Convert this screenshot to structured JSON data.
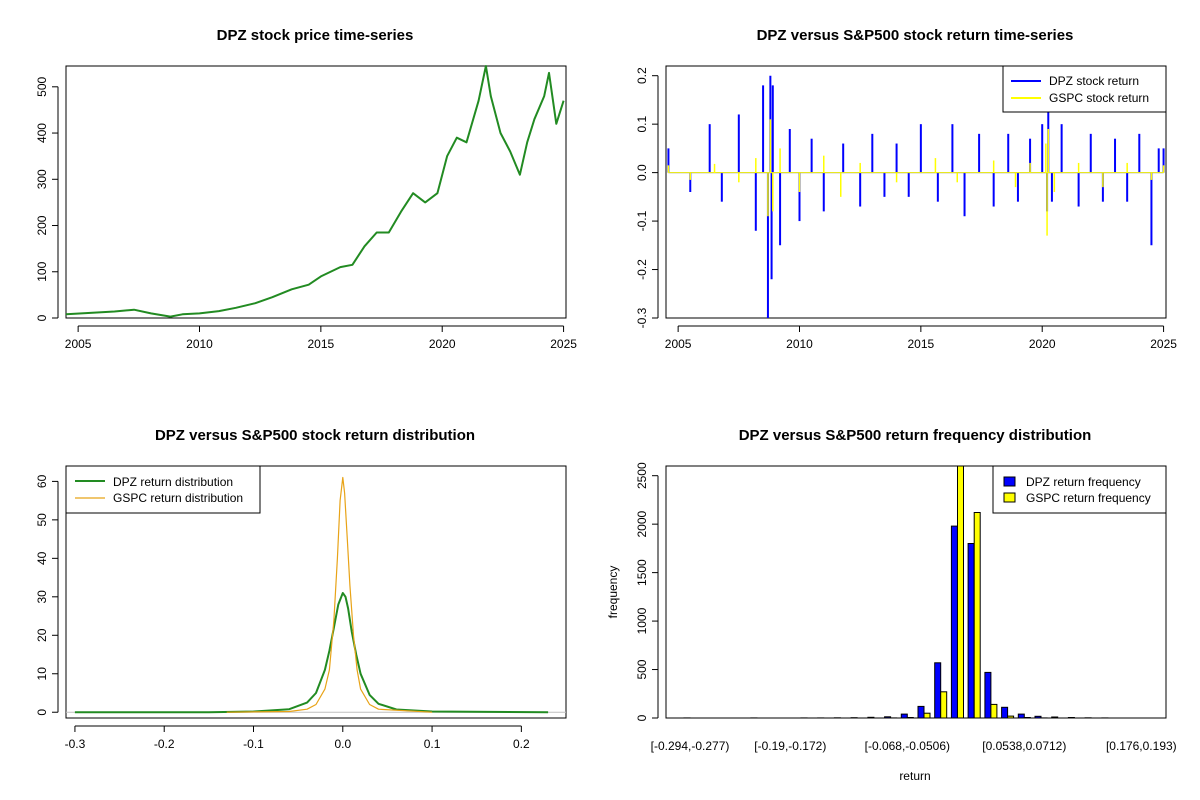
{
  "chart_data": [
    {
      "type": "line",
      "title": "DPZ stock price time-series",
      "xlabel": "",
      "ylabel": "",
      "xlim": [
        2004.5,
        2025.1
      ],
      "ylim": [
        0,
        545
      ],
      "xticks": [
        2005,
        2010,
        2015,
        2020,
        2025
      ],
      "yticks": [
        0,
        100,
        200,
        300,
        400,
        500
      ],
      "grid": false,
      "series": [
        {
          "color": "#228B22",
          "x": [
            2004.5,
            2005.5,
            2006.5,
            2007.3,
            2008.0,
            2008.8,
            2009.3,
            2010.0,
            2010.8,
            2011.5,
            2012.3,
            2013.0,
            2013.8,
            2014.5,
            2015.0,
            2015.8,
            2016.3,
            2016.8,
            2017.3,
            2017.8,
            2018.3,
            2018.8,
            2019.3,
            2019.8,
            2020.2,
            2020.6,
            2021.0,
            2021.5,
            2021.8,
            2022.0,
            2022.4,
            2022.8,
            2023.2,
            2023.5,
            2023.8,
            2024.2,
            2024.4,
            2024.7,
            2025.0
          ],
          "y": [
            8,
            11,
            14,
            18,
            10,
            3,
            8,
            10,
            15,
            22,
            32,
            45,
            62,
            72,
            90,
            110,
            115,
            155,
            185,
            185,
            230,
            270,
            250,
            270,
            350,
            390,
            380,
            470,
            545,
            480,
            400,
            360,
            310,
            380,
            430,
            480,
            530,
            420,
            470
          ]
        }
      ]
    },
    {
      "type": "line",
      "title": "DPZ versus S&P500 stock return time-series",
      "xlabel": "",
      "ylabel": "",
      "xlim": [
        2004.5,
        2025.1
      ],
      "ylim": [
        -0.3,
        0.22
      ],
      "xticks": [
        2005,
        2010,
        2015,
        2020,
        2025
      ],
      "yticks": [
        -0.3,
        -0.2,
        -0.1,
        0.0,
        0.1,
        0.2
      ],
      "ytick_labels": [
        "-0.3",
        "-0.2",
        "-0.1",
        "0.0",
        "0.1",
        "0.2"
      ],
      "grid": false,
      "legend": "top-right",
      "series": [
        {
          "name": "DPZ stock return",
          "color": "#0000FF",
          "x": [
            2004.6,
            2005.5,
            2006.3,
            2006.8,
            2007.5,
            2008.2,
            2008.5,
            2008.7,
            2008.8,
            2008.85,
            2008.9,
            2009.2,
            2009.6,
            2010.0,
            2010.5,
            2011.0,
            2011.8,
            2012.5,
            2013.0,
            2013.5,
            2014.0,
            2014.5,
            2015.0,
            2015.7,
            2016.3,
            2016.8,
            2017.4,
            2018.0,
            2018.6,
            2019.0,
            2019.5,
            2020.0,
            2020.2,
            2020.25,
            2020.4,
            2020.8,
            2021.5,
            2022.0,
            2022.5,
            2023.0,
            2023.5,
            2024.0,
            2024.5,
            2024.8,
            2025.0
          ],
          "y": [
            0.05,
            -0.04,
            0.1,
            -0.06,
            0.12,
            -0.12,
            0.18,
            -0.3,
            0.2,
            -0.22,
            0.18,
            -0.15,
            0.09,
            -0.1,
            0.07,
            -0.08,
            0.06,
            -0.07,
            0.08,
            -0.05,
            0.06,
            -0.05,
            0.1,
            -0.06,
            0.1,
            -0.09,
            0.08,
            -0.07,
            0.08,
            -0.06,
            0.07,
            0.1,
            -0.08,
            0.14,
            -0.06,
            0.1,
            -0.07,
            0.08,
            -0.06,
            0.07,
            -0.06,
            0.08,
            -0.15,
            0.05,
            0.05
          ]
        },
        {
          "name": "GSPC stock return",
          "color": "#FFFF00",
          "x": [
            2004.6,
            2005.5,
            2006.5,
            2007.5,
            2008.2,
            2008.7,
            2008.8,
            2008.9,
            2009.2,
            2010.0,
            2011.0,
            2011.7,
            2012.5,
            2014.0,
            2015.6,
            2016.5,
            2018.0,
            2018.9,
            2019.5,
            2020.15,
            2020.2,
            2020.25,
            2020.5,
            2021.5,
            2022.5,
            2023.5,
            2024.5,
            2025.0
          ],
          "y": [
            0.015,
            -0.015,
            0.018,
            -0.02,
            0.03,
            -0.09,
            0.11,
            -0.08,
            0.05,
            -0.04,
            0.035,
            -0.05,
            0.02,
            -0.02,
            0.03,
            -0.02,
            0.025,
            -0.03,
            0.02,
            0.06,
            -0.13,
            0.09,
            -0.04,
            0.02,
            -0.03,
            0.02,
            -0.015,
            0.015
          ]
        }
      ]
    },
    {
      "type": "line",
      "title": "DPZ versus S&P500 stock return distribution",
      "xlabel": "",
      "ylabel": "",
      "xlim": [
        -0.31,
        0.25
      ],
      "ylim": [
        -1.5,
        64
      ],
      "xticks": [
        -0.3,
        -0.2,
        -0.1,
        0.0,
        0.1,
        0.2
      ],
      "xtick_labels": [
        "-0.3",
        "-0.2",
        "-0.1",
        "0.0",
        "0.1",
        "0.2"
      ],
      "yticks": [
        0,
        10,
        20,
        30,
        40,
        50,
        60
      ],
      "grid": false,
      "legend": "top-left",
      "series": [
        {
          "name": "DPZ return distribution",
          "color": "#228B22",
          "x": [
            -0.3,
            -0.15,
            -0.1,
            -0.06,
            -0.04,
            -0.03,
            -0.02,
            -0.015,
            -0.01,
            -0.005,
            0.0,
            0.003,
            0.006,
            0.01,
            0.015,
            0.02,
            0.03,
            0.04,
            0.06,
            0.1,
            0.23
          ],
          "y": [
            0,
            0,
            0.2,
            0.8,
            2.5,
            5,
            11,
            16,
            22,
            28,
            31,
            30,
            27,
            21,
            15,
            10,
            4.5,
            2.2,
            0.7,
            0.2,
            0
          ]
        },
        {
          "name": "GSPC return distribution",
          "color": "#E8A317",
          "x": [
            -0.13,
            -0.06,
            -0.04,
            -0.03,
            -0.02,
            -0.015,
            -0.01,
            -0.006,
            -0.003,
            0.0,
            0.002,
            0.005,
            0.008,
            0.012,
            0.016,
            0.02,
            0.03,
            0.04,
            0.1
          ],
          "y": [
            0,
            0.2,
            0.8,
            2,
            6,
            11,
            24,
            40,
            55,
            61,
            57,
            45,
            33,
            20,
            11,
            6,
            2,
            0.8,
            0
          ]
        }
      ]
    },
    {
      "type": "bar",
      "title": "DPZ versus S&P500 return frequency distribution",
      "xlabel": "return",
      "ylabel": "frequency",
      "ylim": [
        0,
        2600
      ],
      "yticks": [
        0,
        500,
        1000,
        1500,
        2000,
        2500
      ],
      "bins": 28,
      "tick_labels": [
        {
          "bin": 0,
          "label": "[-0.294,-0.277)"
        },
        {
          "bin": 6,
          "label": "[-0.19,-0.172)"
        },
        {
          "bin": 13,
          "label": "[-0.068,-0.0506)"
        },
        {
          "bin": 20,
          "label": "[0.0538,0.0712)"
        },
        {
          "bin": 27,
          "label": "[0.176,0.193)"
        }
      ],
      "legend": "top-right",
      "series": [
        {
          "name": "DPZ return frequency",
          "color": "#0000FF",
          "values": [
            1,
            0,
            0,
            0,
            1,
            0,
            0,
            1,
            1,
            2,
            3,
            7,
            12,
            40,
            120,
            570,
            1980,
            1800,
            470,
            110,
            40,
            18,
            10,
            5,
            2,
            1,
            0,
            0
          ]
        },
        {
          "name": "GSPC return frequency",
          "color": "#FFFF00",
          "values": [
            0,
            0,
            0,
            0,
            0,
            0,
            0,
            0,
            0,
            0,
            0,
            0,
            1,
            5,
            50,
            270,
            2600,
            2120,
            140,
            20,
            5,
            1,
            0,
            0,
            0,
            0,
            0,
            0
          ]
        }
      ]
    }
  ]
}
